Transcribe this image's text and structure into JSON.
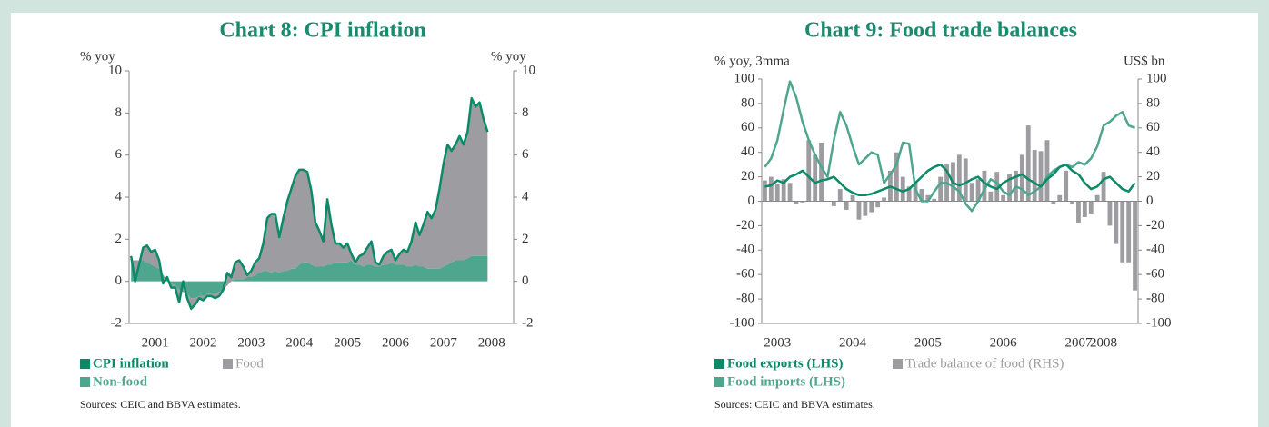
{
  "chart_data": [
    {
      "type": "area",
      "title": "Chart 8: CPI inflation",
      "y_label": "% yoy",
      "y2_label": "% yoy",
      "categories": [
        null,
        null,
        null,
        null,
        null,
        null,
        "2001",
        null,
        null,
        null,
        null,
        null,
        null,
        null,
        null,
        null,
        null,
        null,
        "2002",
        null,
        null,
        null,
        null,
        null,
        null,
        null,
        null,
        null,
        null,
        null,
        "2003",
        null,
        null,
        null,
        null,
        null,
        null,
        null,
        null,
        null,
        null,
        null,
        "2004",
        null,
        null,
        null,
        null,
        null,
        null,
        null,
        null,
        null,
        null,
        null,
        "2005",
        null,
        null,
        null,
        null,
        null,
        null,
        null,
        null,
        null,
        null,
        null,
        "2006",
        null,
        null,
        null,
        null,
        null,
        null,
        null,
        null,
        null,
        null,
        null,
        "2007",
        null,
        null,
        null,
        null,
        null,
        null,
        null,
        null,
        null,
        null,
        null,
        "2008",
        null,
        null,
        null,
        null,
        null
      ],
      "series": [
        {
          "name": "CPI inflation",
          "type": "line",
          "color": "#0b8a68",
          "values": [
            1.2,
            0.0,
            0.8,
            1.6,
            1.7,
            1.4,
            1.5,
            1.0,
            -0.1,
            0.2,
            -0.3,
            -0.3,
            -1.0,
            0.0,
            -0.8,
            -1.3,
            -1.1,
            -0.8,
            -0.9,
            -0.7,
            -0.7,
            -0.8,
            -0.7,
            -0.4,
            0.4,
            0.2,
            0.9,
            1.0,
            0.7,
            0.3,
            0.5,
            0.9,
            1.1,
            1.8,
            3.0,
            3.2,
            3.2,
            2.1,
            3.0,
            3.8,
            4.4,
            5.0,
            5.3,
            5.3,
            5.2,
            4.3,
            2.8,
            2.4,
            1.9,
            3.9,
            2.7,
            1.8,
            1.8,
            1.6,
            1.8,
            1.3,
            0.9,
            1.2,
            1.3,
            1.6,
            1.9,
            0.9,
            0.8,
            1.2,
            1.4,
            1.5,
            1.0,
            1.3,
            1.5,
            1.4,
            1.9,
            2.8,
            2.2,
            2.7,
            3.3,
            3.0,
            3.4,
            4.4,
            5.6,
            6.5,
            6.2,
            6.5,
            6.9,
            6.5,
            7.1,
            8.7,
            8.3,
            8.5,
            7.7,
            7.1,
            null,
            null,
            null,
            null,
            null,
            null
          ]
        },
        {
          "name": "Food",
          "type": "area",
          "color": "#9d9da1",
          "values": [
            0.2,
            -1.0,
            -0.2,
            0.6,
            0.8,
            0.6,
            0.8,
            0.4,
            -0.4,
            0.1,
            -0.2,
            -0.1,
            -0.6,
            0.5,
            -0.2,
            -0.5,
            -0.3,
            -0.1,
            -0.2,
            -0.1,
            -0.1,
            -0.2,
            -0.2,
            0.0,
            0.6,
            0.2,
            0.8,
            0.9,
            0.6,
            0.1,
            0.3,
            0.6,
            0.7,
            1.3,
            2.5,
            2.8,
            2.7,
            1.7,
            2.5,
            3.3,
            3.8,
            4.4,
            4.5,
            4.4,
            4.3,
            3.5,
            2.1,
            1.7,
            1.2,
            3.1,
            1.9,
            0.9,
            0.9,
            0.7,
            0.9,
            0.3,
            0.1,
            0.4,
            0.6,
            0.8,
            1.1,
            0.2,
            0.1,
            0.4,
            0.6,
            0.6,
            0.2,
            0.5,
            0.7,
            0.7,
            1.2,
            2.0,
            1.5,
            2.0,
            2.7,
            2.4,
            2.8,
            3.8,
            4.9,
            5.7,
            5.3,
            5.5,
            5.9,
            5.5,
            6.0,
            7.5,
            7.1,
            7.3,
            6.5,
            5.9,
            null,
            null,
            null,
            null,
            null,
            null
          ]
        },
        {
          "name": "Non-food",
          "type": "area",
          "color": "#4ea68e",
          "values": [
            1.0,
            1.0,
            1.0,
            1.0,
            0.9,
            0.8,
            0.7,
            0.6,
            0.3,
            0.1,
            -0.1,
            -0.2,
            -0.4,
            -0.5,
            -0.6,
            -0.8,
            -0.8,
            -0.7,
            -0.7,
            -0.6,
            -0.6,
            -0.6,
            -0.5,
            -0.4,
            -0.2,
            0.0,
            0.1,
            0.1,
            0.1,
            0.2,
            0.2,
            0.3,
            0.4,
            0.5,
            0.5,
            0.4,
            0.5,
            0.4,
            0.5,
            0.5,
            0.6,
            0.6,
            0.8,
            0.9,
            0.9,
            0.8,
            0.7,
            0.7,
            0.7,
            0.8,
            0.8,
            0.9,
            0.9,
            0.9,
            0.9,
            1.0,
            0.8,
            0.8,
            0.7,
            0.8,
            0.8,
            0.7,
            0.7,
            0.8,
            0.8,
            0.9,
            0.8,
            0.8,
            0.8,
            0.7,
            0.7,
            0.8,
            0.7,
            0.7,
            0.6,
            0.6,
            0.6,
            0.6,
            0.7,
            0.8,
            0.9,
            1.0,
            1.0,
            1.0,
            1.1,
            1.2,
            1.2,
            1.2,
            1.2,
            1.2,
            null,
            null,
            null,
            null,
            null,
            null
          ]
        }
      ],
      "stacked": true,
      "ylim": [
        -2,
        10
      ],
      "yticks": [
        -2,
        0,
        2,
        4,
        6,
        8,
        10
      ],
      "y2lim": [
        -2,
        10
      ],
      "y2ticks": [
        -2,
        0,
        2,
        4,
        6,
        8,
        10
      ],
      "source": "Sources: CEIC and BBVA estimates."
    },
    {
      "type": "bar",
      "title": "Chart 9: Food trade balances",
      "y_label": "% yoy, 3mma",
      "y2_label": "US$ bn",
      "categories": [
        null,
        null,
        "2003",
        null,
        null,
        null,
        null,
        null,
        null,
        null,
        null,
        null,
        null,
        null,
        "2004",
        null,
        null,
        null,
        null,
        null,
        null,
        null,
        null,
        null,
        null,
        null,
        "2005",
        null,
        null,
        null,
        null,
        null,
        null,
        null,
        null,
        null,
        null,
        null,
        "2006",
        null,
        null,
        null,
        null,
        null,
        null,
        null,
        null,
        null,
        null,
        null,
        "2007",
        null,
        null,
        null,
        "2008",
        null,
        null,
        null,
        null,
        null
      ],
      "series": [
        {
          "name": "Food exports (LHS)",
          "type": "line",
          "color": "#0b8a68",
          "values": [
            12,
            13,
            17,
            15,
            20,
            22,
            25,
            20,
            15,
            17,
            18,
            20,
            15,
            10,
            7,
            5,
            5,
            6,
            8,
            10,
            12,
            10,
            8,
            10,
            15,
            20,
            25,
            28,
            30,
            25,
            15,
            13,
            15,
            18,
            20,
            15,
            12,
            10,
            15,
            18,
            20,
            22,
            18,
            15,
            12,
            18,
            22,
            28,
            30,
            25,
            22,
            15,
            10,
            12,
            18,
            20,
            15,
            10,
            8,
            15
          ]
        },
        {
          "name": "Trade balance of food (RHS)",
          "type": "bar",
          "axis": "y2",
          "color": "#9d9da1",
          "values": [
            17,
            20,
            14,
            18,
            15,
            -2,
            -1,
            50,
            38,
            48,
            0,
            -4,
            10,
            -7,
            5,
            -15,
            -12,
            -9,
            -5,
            3,
            25,
            40,
            20,
            12,
            15,
            10,
            5,
            2,
            20,
            30,
            32,
            38,
            35,
            15,
            18,
            25,
            8,
            24,
            5,
            22,
            25,
            38,
            62,
            42,
            41,
            50,
            -2,
            5,
            25,
            -2,
            -18,
            -13,
            -10,
            5,
            24,
            -20,
            -35,
            -50,
            -50,
            -73
          ]
        },
        {
          "name": "Food imports (LHS)",
          "type": "line",
          "color": "#4ea68e",
          "values": [
            28,
            35,
            50,
            75,
            98,
            85,
            65,
            50,
            38,
            28,
            20,
            50,
            73,
            62,
            45,
            30,
            35,
            40,
            38,
            15,
            22,
            30,
            48,
            47,
            10,
            0,
            0,
            8,
            15,
            15,
            12,
            8,
            -2,
            -8,
            0,
            10,
            18,
            15,
            8,
            5,
            12,
            10,
            5,
            8,
            12,
            20,
            25,
            28,
            30,
            28,
            32,
            30,
            35,
            45,
            62,
            65,
            70,
            73,
            62,
            60
          ]
        }
      ],
      "ylim": [
        -100,
        100
      ],
      "yticks": [
        -100,
        -80,
        -60,
        -40,
        -20,
        0,
        20,
        40,
        60,
        80,
        100
      ],
      "y2lim": [
        -100,
        100
      ],
      "y2ticks": [
        -100,
        -80,
        -60,
        -40,
        -20,
        0,
        20,
        40,
        60,
        80,
        100
      ],
      "source": "Sources: CEIC and BBVA estimates."
    }
  ]
}
